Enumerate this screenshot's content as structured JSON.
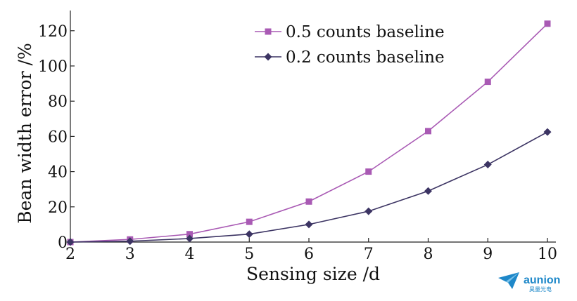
{
  "chart_data": {
    "type": "line",
    "title": "",
    "xlabel": "Sensing size /d",
    "ylabel": "Bean width error /%",
    "xlim": [
      2,
      10
    ],
    "ylim": [
      0,
      125
    ],
    "xticks": [
      2,
      3,
      4,
      5,
      6,
      7,
      8,
      9,
      10
    ],
    "yticks": [
      0,
      20,
      40,
      60,
      80,
      100,
      120
    ],
    "x": [
      2,
      3,
      4,
      5,
      6,
      7,
      8,
      9,
      10
    ],
    "legend_position": "top-right",
    "grid": false,
    "series": [
      {
        "name": "0.5 counts baseline",
        "marker": "square",
        "color": "#a95ab4",
        "values": [
          0,
          1.5,
          4.5,
          11.5,
          23,
          40,
          63,
          91,
          124
        ]
      },
      {
        "name": "0.2 counts baseline",
        "marker": "diamond",
        "color": "#3c3463",
        "values": [
          0,
          0.5,
          2,
          4.5,
          10,
          17.5,
          29,
          44,
          62.5
        ]
      }
    ]
  },
  "watermark": {
    "brand": "aunion",
    "sub": "昊量光电",
    "color": "#1e88c9"
  }
}
